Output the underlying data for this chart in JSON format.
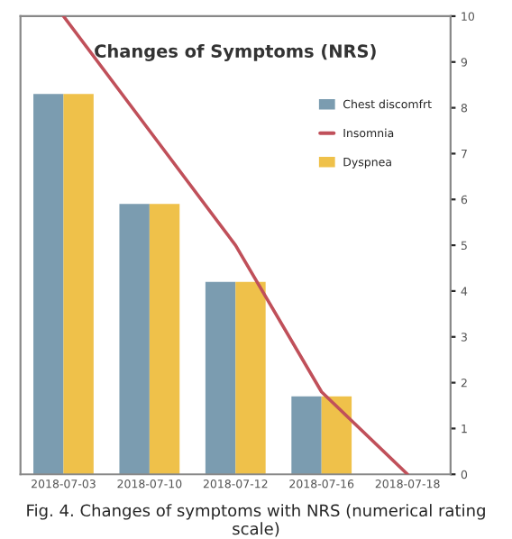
{
  "chart_data": {
    "type": "bar",
    "title": "Changes of Symptoms (NRS)",
    "categories": [
      "2018-07-03",
      "2018-07-10",
      "2018-07-12",
      "2018-07-16",
      "2018-07-18"
    ],
    "series": [
      {
        "name": "Chest discomfrt",
        "color": "#7b9cb0",
        "values": [
          8.3,
          5.9,
          4.2,
          1.7,
          0
        ]
      },
      {
        "name": "Insomnia",
        "type": "line",
        "color": "#c0505a",
        "values": [
          10,
          7.5,
          5,
          1.8,
          0
        ],
        "line_style": "solid",
        "marker": "none"
      },
      {
        "name": "Dyspnea",
        "color": "#efc14a",
        "values": [
          8.3,
          5.9,
          4.2,
          1.7,
          0
        ]
      }
    ],
    "ylim": [
      0,
      10
    ],
    "yticks": [
      0,
      1,
      2,
      3,
      4,
      5,
      6,
      7,
      8,
      9,
      10
    ],
    "legend": "top right",
    "grid": false,
    "annotations": [
      "Fig. 4. Changes of symptoms with NRS (numerical rating scale)"
    ]
  }
}
